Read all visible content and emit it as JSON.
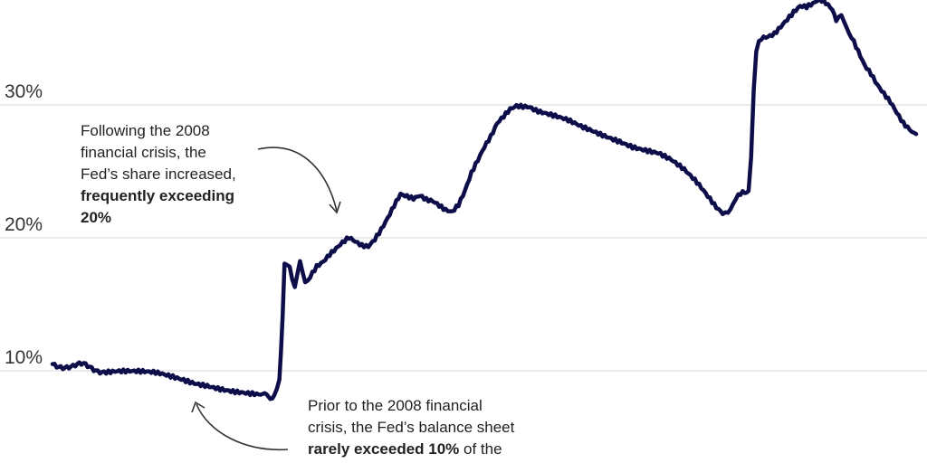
{
  "chart_data": {
    "type": "line",
    "title": "",
    "xlabel": "",
    "ylabel": "",
    "ylim": [
      3,
      37
    ],
    "y_ticks": [
      {
        "value": 10,
        "label": "10%"
      },
      {
        "value": 20,
        "label": "20%"
      },
      {
        "value": 30,
        "label": "30%"
      }
    ],
    "grid": true,
    "line_color": "#0d0d4a",
    "gridline_color": "#dddddd",
    "series": [
      {
        "points": [
          [
            0.0,
            10.5
          ],
          [
            0.8,
            10.4
          ],
          [
            1.6,
            10.3
          ],
          [
            2.4,
            10.4
          ],
          [
            3.2,
            10.2
          ],
          [
            4.0,
            10.0
          ],
          [
            5.0,
            10.0
          ],
          [
            6.0,
            9.9
          ],
          [
            7.0,
            9.8
          ],
          [
            8.0,
            9.7
          ],
          [
            9.0,
            9.5
          ],
          [
            10.0,
            9.3
          ],
          [
            11.0,
            9.1
          ],
          [
            12.0,
            9.0
          ],
          [
            13.0,
            8.8
          ],
          [
            14.0,
            8.6
          ],
          [
            15.0,
            8.4
          ],
          [
            16.0,
            8.2
          ],
          [
            16.6,
            8.1
          ],
          [
            17.2,
            8.2
          ],
          [
            17.6,
            9.5
          ],
          [
            17.85,
            14.0
          ],
          [
            18.0,
            18.0
          ],
          [
            18.4,
            18.0
          ],
          [
            18.6,
            17.0
          ],
          [
            18.8,
            16.2
          ],
          [
            19.0,
            17.0
          ],
          [
            19.2,
            18.0
          ],
          [
            19.6,
            16.8
          ],
          [
            20.0,
            17.0
          ],
          [
            20.5,
            17.8
          ],
          [
            21.0,
            18.2
          ],
          [
            21.5,
            18.8
          ],
          [
            22.0,
            19.3
          ],
          [
            22.5,
            19.8
          ],
          [
            23.0,
            20.2
          ],
          [
            23.5,
            19.9
          ],
          [
            24.0,
            19.6
          ],
          [
            24.5,
            19.5
          ],
          [
            25.0,
            20.0
          ],
          [
            25.5,
            20.7
          ],
          [
            26.0,
            21.5
          ],
          [
            26.5,
            22.4
          ],
          [
            27.0,
            23.2
          ],
          [
            27.5,
            23.0
          ],
          [
            28.0,
            22.8
          ],
          [
            28.5,
            23.0
          ],
          [
            29.0,
            22.7
          ],
          [
            29.5,
            22.6
          ],
          [
            30.0,
            22.3
          ],
          [
            30.5,
            22.0
          ],
          [
            31.0,
            21.9
          ],
          [
            31.5,
            22.5
          ],
          [
            32.0,
            23.6
          ],
          [
            32.5,
            25.0
          ],
          [
            33.0,
            26.0
          ],
          [
            33.5,
            27.0
          ],
          [
            34.0,
            27.8
          ],
          [
            34.5,
            28.8
          ],
          [
            35.0,
            29.3
          ],
          [
            35.5,
            29.8
          ],
          [
            36.0,
            30.0
          ],
          [
            36.5,
            29.9
          ],
          [
            37.0,
            29.8
          ],
          [
            37.5,
            29.5
          ],
          [
            38.0,
            29.3
          ],
          [
            39.0,
            29.0
          ],
          [
            40.0,
            28.7
          ],
          [
            41.0,
            28.3
          ],
          [
            42.0,
            28.0
          ],
          [
            43.0,
            27.7
          ],
          [
            44.0,
            27.4
          ],
          [
            45.0,
            27.0
          ],
          [
            46.0,
            26.7
          ],
          [
            47.0,
            26.4
          ],
          [
            48.0,
            25.8
          ],
          [
            49.0,
            25.0
          ],
          [
            50.0,
            24.0
          ],
          [
            51.0,
            22.8
          ],
          [
            51.5,
            22.2
          ],
          [
            52.0,
            21.8
          ],
          [
            52.4,
            21.9
          ],
          [
            52.8,
            22.8
          ],
          [
            53.2,
            23.1
          ],
          [
            53.7,
            23.4
          ],
          [
            54.0,
            23.6
          ],
          [
            54.2,
            26.0
          ],
          [
            54.4,
            31.0
          ],
          [
            54.6,
            34.0
          ],
          [
            54.8,
            35.0
          ],
          [
            55.0,
            35.2
          ],
          [
            55.5,
            35.3
          ],
          [
            56.0,
            35.5
          ],
          [
            56.5,
            36.0
          ],
          [
            57.0,
            36.5
          ],
          [
            57.5,
            37.0
          ],
          [
            58.0,
            37.4
          ],
          [
            58.5,
            37.3
          ],
          [
            59.0,
            37.5
          ],
          [
            59.5,
            37.8
          ],
          [
            60.0,
            37.5
          ],
          [
            60.5,
            37.0
          ],
          [
            60.8,
            36.2
          ],
          [
            61.2,
            36.5
          ],
          [
            61.6,
            36.0
          ],
          [
            62.0,
            35.0
          ],
          [
            62.5,
            34.0
          ],
          [
            63.0,
            33.0
          ],
          [
            63.5,
            32.4
          ],
          [
            64.0,
            31.6
          ],
          [
            64.5,
            31.0
          ],
          [
            65.0,
            30.4
          ],
          [
            65.5,
            29.6
          ],
          [
            66.0,
            28.8
          ],
          [
            66.5,
            28.3
          ],
          [
            67.0,
            27.8
          ]
        ]
      }
    ]
  },
  "annotations": {
    "top": {
      "lines": [
        "Following the 2008",
        "financial crisis, the",
        "Fed’s share increased,"
      ],
      "bold_lines": [
        "frequently exceeding",
        "20%"
      ]
    },
    "bottom": {
      "line1": "Prior to the 2008 financial",
      "line2": "crisis, the Fed’s balance sheet",
      "line3_bold": "rarely exceeded 10%",
      "line3_rest": " of the"
    }
  }
}
